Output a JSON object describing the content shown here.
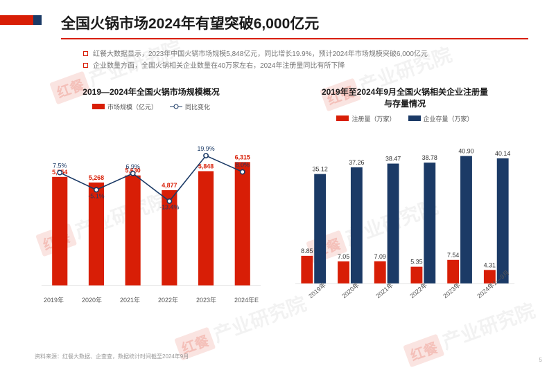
{
  "title": "全国火锅市场2024年有望突破6,000亿元",
  "bullets": [
    "红餐大数据显示，2023年中国火锅市场规模5,848亿元，同比增长19.9%，预计2024年市场规模突破6,000亿元",
    "企业数量方面，全国火锅相关企业数量在40万家左右，2024年注册量同比有所下降"
  ],
  "chart_left": {
    "type": "bar+line",
    "title": "2019—2024年全国火锅市场规模概况",
    "legend": {
      "bar": "市场规模（亿元）",
      "line": "同比变化"
    },
    "categories": [
      "2019年",
      "2020年",
      "2021年",
      "2022年",
      "2023年",
      "2024年E"
    ],
    "bar_values": [
      5554,
      5268,
      5630,
      4877,
      5848,
      6315
    ],
    "line_values": [
      7.5,
      -5.1,
      6.9,
      -13.4,
      19.9,
      8.0
    ],
    "bar_color": "#d81e06",
    "line_color": "#1b3a66",
    "marker_fill": "#ffffff",
    "value_label_color": "#d81e06",
    "line_label_color": "#1b3a66",
    "bar_ylim": [
      0,
      7000
    ],
    "line_ylim": [
      -20,
      25
    ],
    "bar_width": 0.42,
    "grid_color": "#e5e5e5",
    "background_color": "#ffffff",
    "label_fontsize": 9,
    "value_fontsize": 9
  },
  "chart_right": {
    "type": "grouped-bar",
    "title": "2019年至2024年9月全国火锅相关企业注册量\n与存量情况",
    "legend": {
      "series1": "注册量（万家）",
      "series2": "企业存量（万家）"
    },
    "categories": [
      "2019年",
      "2020年",
      "2021年",
      "2022年",
      "2023年",
      "2024年1—9月"
    ],
    "series1_values": [
      8.85,
      7.05,
      7.09,
      5.35,
      7.54,
      4.31
    ],
    "series2_values": [
      35.12,
      37.26,
      38.47,
      38.78,
      40.9,
      40.14
    ],
    "series1_color": "#d81e06",
    "series2_color": "#1b3a66",
    "ylim": [
      0,
      45
    ],
    "bar_width": 0.32,
    "grid_color": "#e5e5e5",
    "background_color": "#ffffff",
    "label_fontsize": 9,
    "value_fontsize": 9
  },
  "source": "资料来源：红餐大数据、企查查，数据统计时间截至2024年9月",
  "page_num": "5",
  "watermark_text": "产业研究院",
  "watermark_badge": "红餐",
  "side_label": "产业研究院",
  "side_badge": "红餐"
}
